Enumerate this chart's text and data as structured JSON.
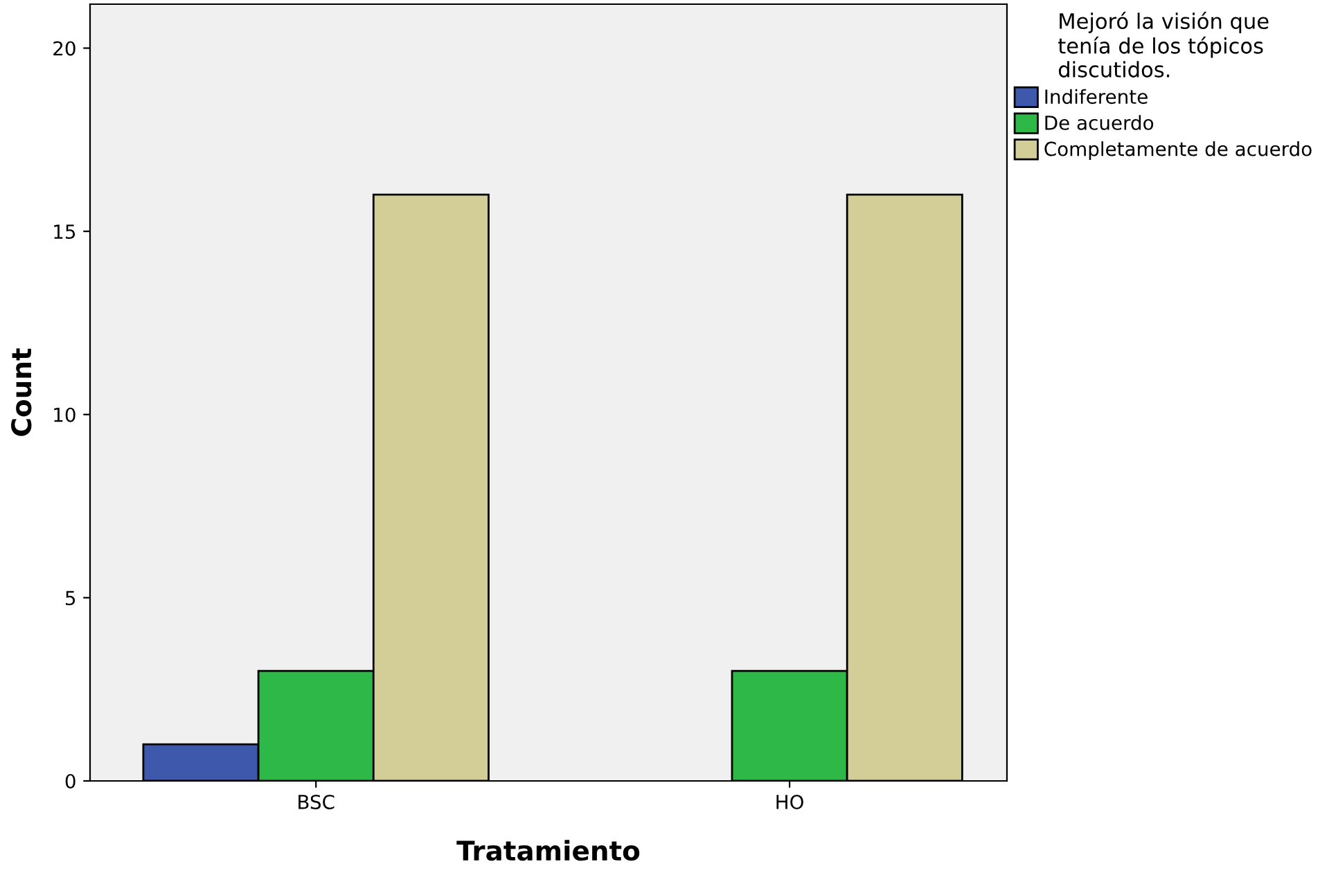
{
  "chart_data": {
    "type": "bar",
    "xlabel": "Tratamiento",
    "ylabel": "Count",
    "legend_title": "Mejoró la visión que\ntenía de los tópicos\ndiscutidos.",
    "categories": [
      "BSC",
      "HO"
    ],
    "series": [
      {
        "name": "Indiferente",
        "color": "#3e58ac",
        "values": [
          1,
          null
        ]
      },
      {
        "name": "De acuerdo",
        "color": "#2eb848",
        "values": [
          3,
          3
        ]
      },
      {
        "name": "Completamente de acuerdo",
        "color": "#d3ce97",
        "values": [
          16,
          16
        ]
      }
    ],
    "ylim": [
      0,
      21.2
    ],
    "yticks": [
      0,
      5,
      10,
      15,
      20
    ],
    "grid": false,
    "legend": "top right"
  }
}
